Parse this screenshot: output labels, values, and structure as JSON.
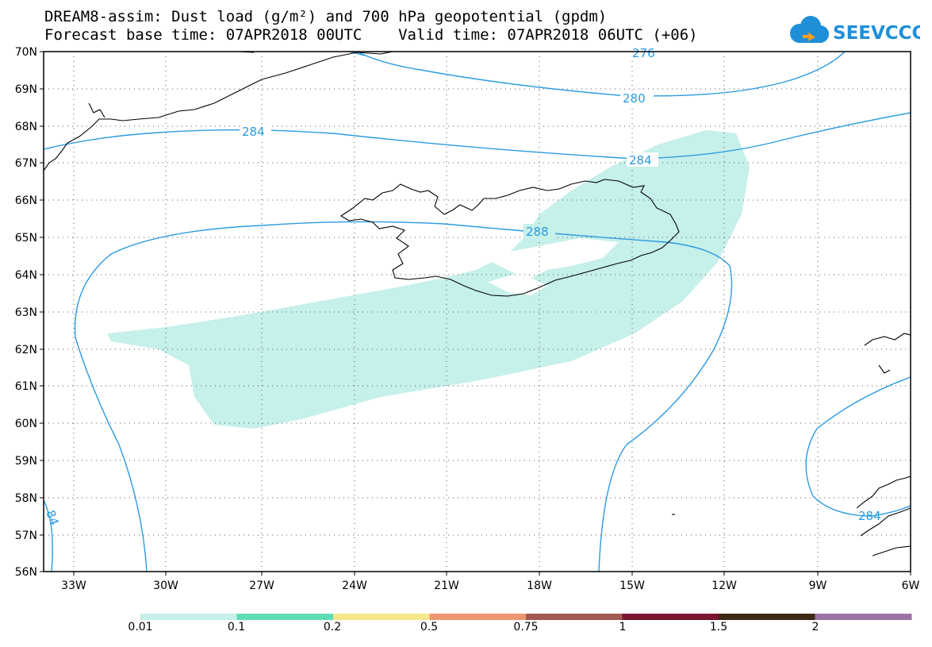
{
  "title_line1": "DREAM8-assim: Dust load (g/m²) and 700 hPa geopotential (gpdm)",
  "title_line2": "Forecast base time: 07APR2018 00UTC    Valid time: 07APR2018 06UTC (+06)",
  "logo_text": "SEEVCCC",
  "lat_labels": [
    "70N",
    "69N",
    "68N",
    "67N",
    "66N",
    "65N",
    "64N",
    "63N",
    "62N",
    "61N",
    "60N",
    "59N",
    "58N",
    "57N",
    "56N"
  ],
  "lon_labels": [
    "33W",
    "30W",
    "27W",
    "24W",
    "21W",
    "18W",
    "15W",
    "12W",
    "9W",
    "6W"
  ],
  "contour_labels": {
    "c276": "276",
    "c280": "280",
    "c284_west": "284",
    "c284_east": "284",
    "c288": "288",
    "c284_sw": "84",
    "c284_se": "284"
  },
  "legend": {
    "labels": [
      "0.01",
      "0.1",
      "0.2",
      "0.5",
      "0.75",
      "1",
      "1.5",
      "2"
    ],
    "colors": [
      "#c6f0ea",
      "#5fdcb6",
      "#f6e88a",
      "#ee9572",
      "#a35a52",
      "#7a1431",
      "#3d2a14",
      "#9c72a5"
    ]
  },
  "colors": {
    "contour": "#2a9be0",
    "dust": "#c6f0ea",
    "coast": "#000000"
  }
}
